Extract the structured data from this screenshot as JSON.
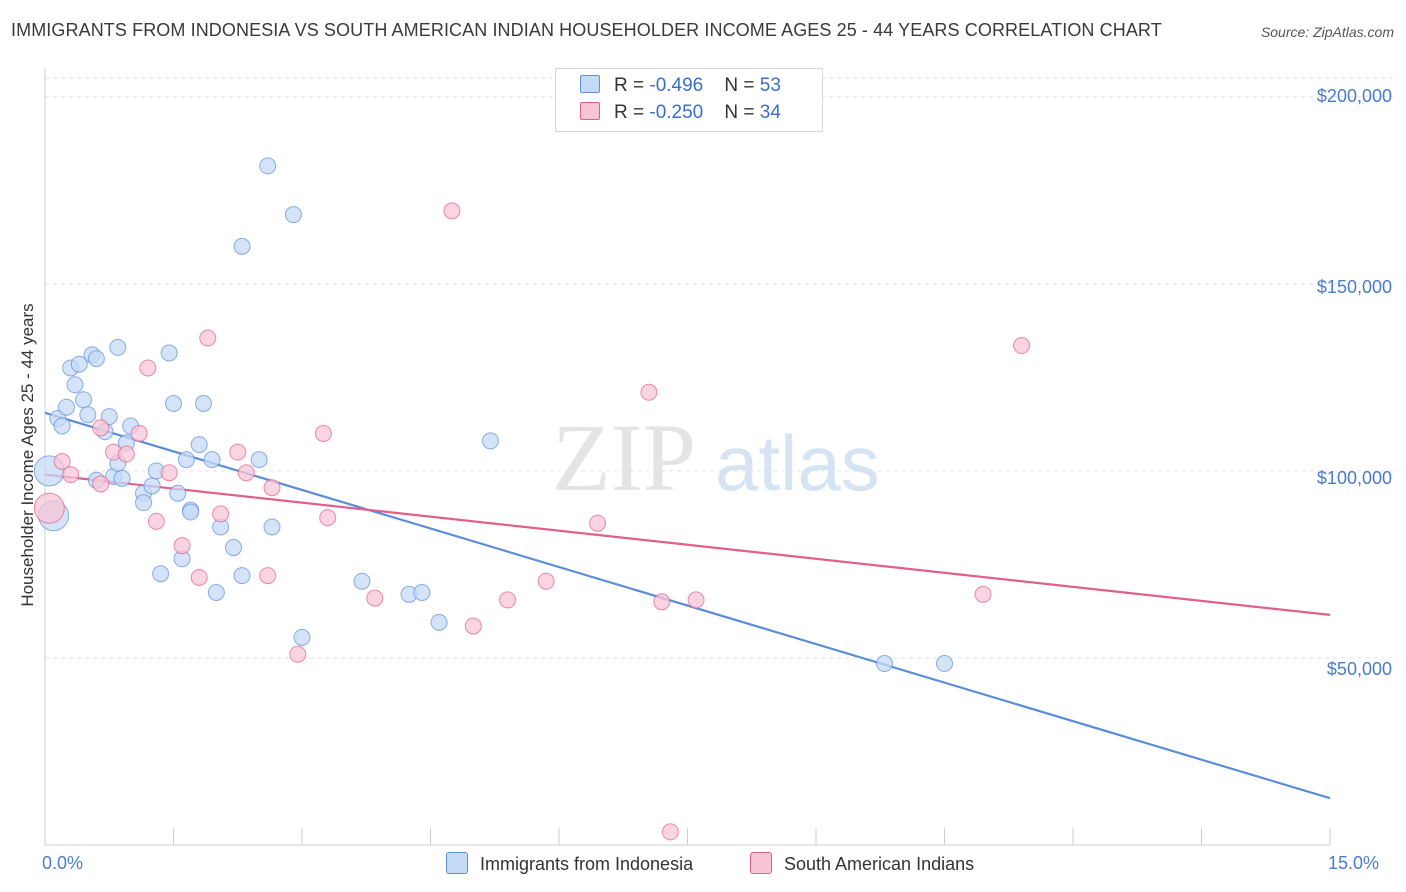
{
  "title": "IMMIGRANTS FROM INDONESIA VS SOUTH AMERICAN INDIAN HOUSEHOLDER INCOME AGES 25 - 44 YEARS CORRELATION CHART",
  "source": "Source: ZipAtlas.com",
  "watermark": {
    "zip": "ZIP",
    "atlas": "atlas"
  },
  "legend_top": [
    {
      "r_label": "R = ",
      "r_value": "-0.496",
      "n_label": "N = ",
      "n_value": "53",
      "color": "#a9c8f0"
    },
    {
      "r_label": "R = ",
      "r_value": "-0.250",
      "n_label": "N = ",
      "n_value": "34",
      "color": "#f5b8cb"
    }
  ],
  "y_tick_labels": [
    "$200,000",
    "$150,000",
    "$100,000",
    "$50,000"
  ],
  "x_tick_labels": [
    "0.0%",
    "15.0%"
  ],
  "chart_data": {
    "type": "scatter",
    "title": "IMMIGRANTS FROM INDONESIA VS SOUTH AMERICAN INDIAN HOUSEHOLDER INCOME AGES 25 - 44 YEARS CORRELATION CHART",
    "xlabel": "",
    "ylabel": "Householder Income Ages 25 - 44 years",
    "xlim": [
      0,
      15
    ],
    "ylim": [
      0,
      205000
    ],
    "x_unit": "%",
    "y_ticks": [
      50000,
      100000,
      150000,
      200000
    ],
    "x_ticks": [
      0,
      15
    ],
    "grid": true,
    "legend_position": "bottom",
    "series": [
      {
        "name": "Immigrants from Indonesia",
        "color": "#5b8ed8",
        "fill": "#c5daf6",
        "trend": {
          "x": [
            0,
            15
          ],
          "y": [
            115500,
            12500
          ]
        },
        "points": [
          [
            0.15,
            114000
          ],
          [
            0.2,
            112000
          ],
          [
            0.25,
            117000
          ],
          [
            0.3,
            127500
          ],
          [
            0.35,
            123000
          ],
          [
            0.4,
            128500
          ],
          [
            0.45,
            119000
          ],
          [
            0.5,
            115000
          ],
          [
            0.55,
            131000
          ],
          [
            0.6,
            130000
          ],
          [
            0.7,
            110500
          ],
          [
            0.75,
            114500
          ],
          [
            0.8,
            98500
          ],
          [
            0.85,
            102000
          ],
          [
            0.85,
            133000
          ],
          [
            0.95,
            107500
          ],
          [
            1.0,
            112000
          ],
          [
            1.15,
            94000
          ],
          [
            1.15,
            91500
          ],
          [
            1.25,
            96000
          ],
          [
            1.3,
            100000
          ],
          [
            1.35,
            72500
          ],
          [
            1.45,
            131500
          ],
          [
            1.5,
            118000
          ],
          [
            1.55,
            94000
          ],
          [
            1.6,
            76500
          ],
          [
            1.65,
            103000
          ],
          [
            1.7,
            89500
          ],
          [
            1.8,
            107000
          ],
          [
            1.85,
            118000
          ],
          [
            1.95,
            103000
          ],
          [
            2.0,
            67500
          ],
          [
            2.05,
            85000
          ],
          [
            2.2,
            79500
          ],
          [
            2.3,
            72000
          ],
          [
            2.3,
            160000
          ],
          [
            2.5,
            103000
          ],
          [
            2.6,
            181500
          ],
          [
            2.65,
            85000
          ],
          [
            2.9,
            168500
          ],
          [
            3.0,
            55500
          ],
          [
            3.7,
            70500
          ],
          [
            4.25,
            67000
          ],
          [
            4.4,
            67500
          ],
          [
            4.6,
            59500
          ],
          [
            5.2,
            108000
          ],
          [
            9.8,
            48500
          ],
          [
            10.5,
            48500
          ],
          [
            0.05,
            100000
          ],
          [
            0.1,
            88000
          ],
          [
            0.9,
            98000
          ],
          [
            1.7,
            89000
          ],
          [
            0.6,
            97500
          ]
        ]
      },
      {
        "name": "South American Indians",
        "color": "#e0608a",
        "fill": "#f8c5d5",
        "trend": {
          "x": [
            0,
            15
          ],
          "y": [
            99000,
            61500
          ]
        },
        "points": [
          [
            0.05,
            90000
          ],
          [
            0.2,
            102500
          ],
          [
            0.3,
            99000
          ],
          [
            0.65,
            111500
          ],
          [
            0.65,
            96500
          ],
          [
            0.8,
            105000
          ],
          [
            0.95,
            104500
          ],
          [
            1.1,
            110000
          ],
          [
            1.2,
            127500
          ],
          [
            1.3,
            86500
          ],
          [
            1.45,
            99500
          ],
          [
            1.6,
            80000
          ],
          [
            1.8,
            71500
          ],
          [
            1.9,
            135500
          ],
          [
            2.05,
            88500
          ],
          [
            2.25,
            105000
          ],
          [
            2.35,
            99500
          ],
          [
            2.6,
            72000
          ],
          [
            2.65,
            95500
          ],
          [
            2.95,
            51000
          ],
          [
            3.25,
            110000
          ],
          [
            3.3,
            87500
          ],
          [
            3.85,
            66000
          ],
          [
            4.75,
            169500
          ],
          [
            5.0,
            58500
          ],
          [
            5.4,
            65500
          ],
          [
            5.85,
            70500
          ],
          [
            6.45,
            86000
          ],
          [
            7.05,
            121000
          ],
          [
            7.2,
            65000
          ],
          [
            7.3,
            3500
          ],
          [
            7.6,
            65500
          ],
          [
            10.95,
            67000
          ],
          [
            11.4,
            133500
          ]
        ]
      }
    ]
  }
}
